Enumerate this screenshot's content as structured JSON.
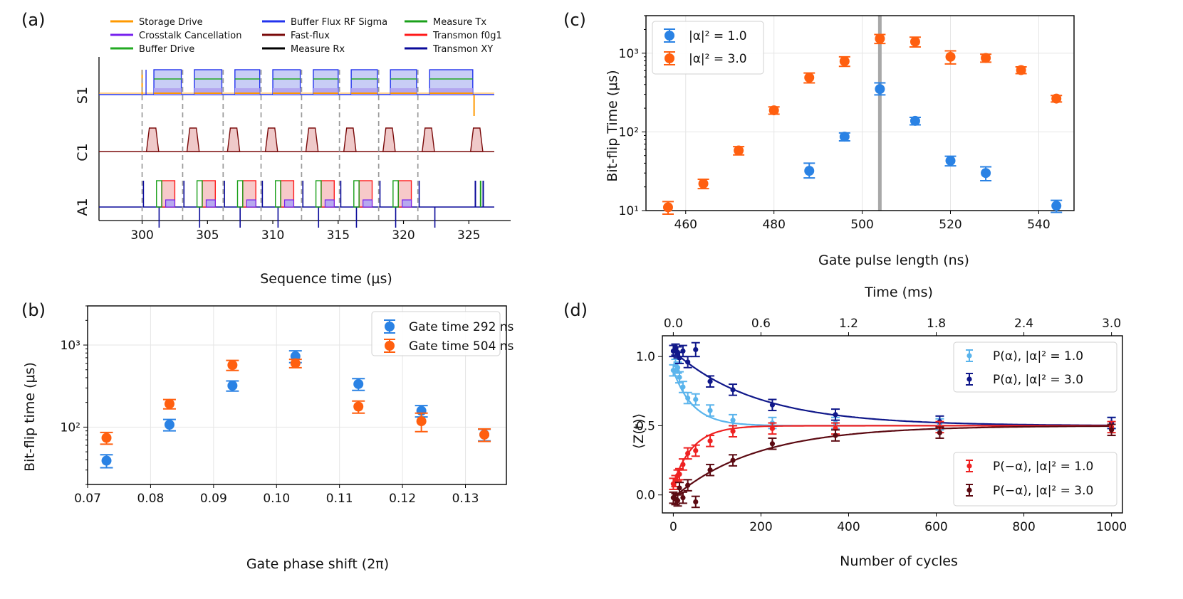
{
  "colors": {
    "storage": "#ff9900",
    "crosstalk": "#7722ee",
    "buffer_drive": "#22aa22",
    "buffer_flux": "#2233ee",
    "fastflux": "#7a0a0a",
    "measure_rx": "#000000",
    "measure_tx": "#1aa01a",
    "transmon_f0g1": "#ff1a1a",
    "transmon_xy": "#0a0a9a",
    "blue": "#2a82e4",
    "orange": "#ff5f0f",
    "light_blue": "#5ab4ec",
    "navy": "#10188a",
    "red": "#ee2222",
    "maroon": "#5c0a12"
  },
  "chart_data": [
    {
      "panel": "(a)",
      "type": "line",
      "xlabel": "Sequence time (μs)",
      "ticks": [
        300,
        305,
        310,
        315,
        320,
        325
      ],
      "xlim": [
        296.7,
        328.2
      ],
      "channels": [
        "S1",
        "C1",
        "A1"
      ],
      "cycle_boundaries": [
        300.0,
        303.1,
        306.2,
        309.1,
        312.2,
        315.1,
        318.1,
        321.1
      ],
      "legend": [
        {
          "label": "Storage Drive",
          "color_key": "storage"
        },
        {
          "label": "Crosstalk Cancellation",
          "color_key": "crosstalk"
        },
        {
          "label": "Buffer Drive",
          "color_key": "buffer_drive"
        },
        {
          "label": "Buffer Flux RF Sigma",
          "color_key": "buffer_flux"
        },
        {
          "label": "Fast-flux",
          "color_key": "fastflux"
        },
        {
          "label": "Measure Rx",
          "color_key": "measure_rx"
        },
        {
          "label": "Measure Tx",
          "color_key": "measure_tx"
        },
        {
          "label": "Transmon f0g1",
          "color_key": "transmon_f0g1"
        },
        {
          "label": "Transmon XY",
          "color_key": "transmon_xy"
        }
      ]
    },
    {
      "panel": "(b)",
      "type": "scatter",
      "xlabel": "Gate phase shift (2π)",
      "ylabel": "Bit-flip time (μs)",
      "yscale": "log",
      "xlim": [
        0.07,
        0.1365
      ],
      "ylim": [
        20,
        3000
      ],
      "xticks": [
        "0.07",
        "0.08",
        "0.09",
        "0.10",
        "0.11",
        "0.12",
        "0.13"
      ],
      "yticks": [
        "10²",
        "10³"
      ],
      "series": [
        {
          "name": "Gate time 292 ns",
          "color_key": "blue",
          "x": [
            0.073,
            0.083,
            0.093,
            0.103,
            0.113,
            0.123,
            0.133
          ],
          "y": [
            39,
            107,
            320,
            730,
            335,
            158,
            81
          ],
          "err_low": [
            7,
            17,
            45,
            120,
            55,
            25,
            13
          ],
          "err_high": [
            7,
            17,
            45,
            120,
            55,
            25,
            13
          ]
        },
        {
          "name": "Gate time 504 ns",
          "color_key": "orange",
          "x": [
            0.073,
            0.083,
            0.093,
            0.103,
            0.113,
            0.123,
            0.133
          ],
          "y": [
            74,
            192,
            570,
            600,
            178,
            118,
            81
          ],
          "err_low": [
            12,
            25,
            80,
            70,
            30,
            30,
            14
          ],
          "err_high": [
            12,
            25,
            80,
            70,
            30,
            30,
            14
          ]
        }
      ]
    },
    {
      "panel": "(c)",
      "type": "scatter",
      "xlabel": "Gate pulse length (ns)",
      "ylabel": "Bit-flip Time (μs)",
      "yscale": "log",
      "xlim": [
        451,
        548
      ],
      "ylim": [
        10,
        3000
      ],
      "xticks": [
        "460",
        "480",
        "500",
        "520",
        "540"
      ],
      "yticks": [
        "10¹",
        "10²",
        "10³"
      ],
      "vline_x": 504,
      "series": [
        {
          "name": "|α|² = 1.0",
          "color_key": "blue",
          "x": [
            488,
            496,
            504,
            512,
            520,
            528,
            544
          ],
          "y": [
            32,
            87,
            350,
            138,
            43,
            30,
            11.5
          ],
          "err_low": [
            6,
            10,
            55,
            15,
            6,
            6,
            2
          ],
          "err_high": [
            8,
            10,
            70,
            15,
            6,
            6,
            2
          ]
        },
        {
          "name": "|α|² = 3.0",
          "color_key": "orange",
          "x": [
            456,
            464,
            472,
            480,
            488,
            496,
            504,
            512,
            520,
            528,
            536,
            544
          ],
          "y": [
            11,
            22,
            58,
            188,
            490,
            790,
            1530,
            1400,
            900,
            870,
            610,
            265
          ],
          "err_low": [
            2,
            3,
            7,
            20,
            70,
            110,
            200,
            200,
            170,
            100,
            60,
            25
          ],
          "err_high": [
            2,
            3,
            7,
            20,
            70,
            110,
            200,
            200,
            170,
            100,
            60,
            25
          ]
        }
      ]
    },
    {
      "panel": "(d)",
      "type": "scatter",
      "xlabel": "Number of cycles",
      "xlabel_top": "Time (ms)",
      "ylabel": "⟨Z(t)⟩",
      "xlim": [
        -25,
        1025
      ],
      "ylim": [
        -0.13,
        1.15
      ],
      "xticks": [
        "0",
        "200",
        "400",
        "600",
        "800",
        "1000"
      ],
      "xticks_top": [
        "0.0",
        "0.6",
        "1.2",
        "1.8",
        "2.4",
        "3.0"
      ],
      "yticks": [
        "0.0",
        "0.5",
        "1.0"
      ],
      "series": [
        {
          "name": "P(α), |α|² = 1.0",
          "color_key": "light_blue",
          "x": [
            0,
            5,
            10,
            14,
            22,
            33,
            51,
            84,
            136,
            226,
            370,
            608,
            1000
          ],
          "y": [
            0.9,
            0.94,
            0.92,
            0.85,
            0.78,
            0.7,
            0.69,
            0.61,
            0.54,
            0.52,
            0.52,
            0.51,
            0.52
          ],
          "err": [
            0.04,
            0.04,
            0.04,
            0.04,
            0.04,
            0.04,
            0.04,
            0.04,
            0.04,
            0.04,
            0.04,
            0.04,
            0.04
          ],
          "fit_tau": 45
        },
        {
          "name": "P(α), |α|² = 3.0",
          "color_key": "navy",
          "x": [
            0,
            5,
            10,
            14,
            22,
            33,
            51,
            84,
            136,
            226,
            370,
            608,
            1000
          ],
          "y": [
            1.04,
            1.05,
            1.03,
            0.99,
            1.04,
            0.96,
            1.05,
            0.82,
            0.76,
            0.65,
            0.58,
            0.53,
            0.52
          ],
          "err": [
            0.04,
            0.04,
            0.04,
            0.04,
            0.04,
            0.04,
            0.05,
            0.04,
            0.04,
            0.04,
            0.04,
            0.04,
            0.04
          ],
          "fit_tau": 190
        },
        {
          "name": "P(−α), |α|² = 1.0",
          "color_key": "red",
          "x": [
            0,
            5,
            10,
            14,
            22,
            33,
            51,
            84,
            136,
            226,
            370,
            608,
            1000
          ],
          "y": [
            0.08,
            0.1,
            0.14,
            0.15,
            0.22,
            0.3,
            0.32,
            0.39,
            0.46,
            0.48,
            0.48,
            0.49,
            0.49
          ],
          "err": [
            0.04,
            0.04,
            0.04,
            0.04,
            0.04,
            0.04,
            0.04,
            0.04,
            0.04,
            0.04,
            0.04,
            0.04,
            0.04
          ],
          "fit_tau": 45
        },
        {
          "name": "P(−α), |α|² = 3.0",
          "color_key": "maroon",
          "x": [
            0,
            5,
            10,
            14,
            22,
            33,
            51,
            84,
            136,
            226,
            370,
            608,
            1000
          ],
          "y": [
            -0.02,
            -0.03,
            -0.04,
            0.05,
            -0.02,
            0.07,
            -0.05,
            0.18,
            0.25,
            0.37,
            0.43,
            0.45,
            0.47
          ],
          "err": [
            0.04,
            0.04,
            0.04,
            0.04,
            0.04,
            0.04,
            0.04,
            0.04,
            0.04,
            0.04,
            0.04,
            0.04,
            0.04
          ],
          "fit_tau": 190
        }
      ]
    }
  ]
}
